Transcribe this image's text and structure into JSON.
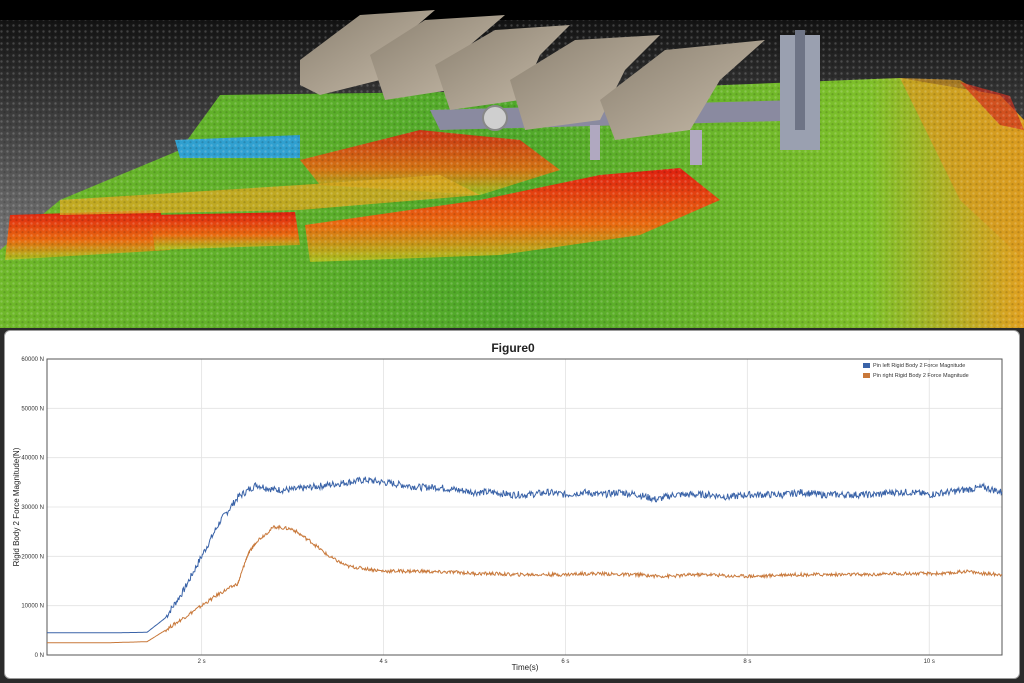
{
  "colors": {
    "series_left": "#3a63a8",
    "series_right": "#c8783a",
    "grid": "#e2e2e2",
    "plot_border": "#555555"
  },
  "scene": {
    "description_icon": "plough-simulation-3d-view-icon"
  },
  "chart_data": {
    "type": "line",
    "title": "Figure0",
    "xlabel": "Time(s)",
    "ylabel": "Rigid Body 2 Force Magnitude(N)",
    "xlim": [
      0.3,
      10.8
    ],
    "ylim": [
      0,
      60000
    ],
    "x_ticks": [
      2,
      4,
      6,
      8,
      10
    ],
    "x_tick_labels": [
      "2 s",
      "4 s",
      "6 s",
      "8 s",
      "10 s"
    ],
    "y_ticks": [
      0,
      10000,
      20000,
      30000,
      40000,
      50000,
      60000
    ],
    "y_tick_labels": [
      "0 N",
      "10000 N",
      "20000 N",
      "30000 N",
      "40000 N",
      "50000 N",
      "60000 N"
    ],
    "grid": true,
    "legend_position": "top-right",
    "series": [
      {
        "name": "Pin left Rigid Body 2 Force Magnitude",
        "color": "#3a63a8",
        "x": [
          0.3,
          1.0,
          1.4,
          1.6,
          1.8,
          2.0,
          2.2,
          2.4,
          2.6,
          2.8,
          3.0,
          3.2,
          3.4,
          3.6,
          3.8,
          4.0,
          4.2,
          4.4,
          4.6,
          4.8,
          5.0,
          5.2,
          5.4,
          5.6,
          5.8,
          6.0,
          6.2,
          6.4,
          6.6,
          6.8,
          7.0,
          7.2,
          7.4,
          7.6,
          7.8,
          8.0,
          8.2,
          8.4,
          8.6,
          8.8,
          9.0,
          9.2,
          9.4,
          9.6,
          9.8,
          10.0,
          10.2,
          10.4,
          10.6,
          10.8
        ],
        "y": [
          4500,
          4500,
          4600,
          7500,
          13000,
          20000,
          27000,
          32000,
          34500,
          33500,
          33500,
          34000,
          34500,
          35000,
          35500,
          35000,
          34500,
          34000,
          34000,
          33500,
          33000,
          33000,
          32500,
          32500,
          33000,
          32500,
          33000,
          32500,
          33000,
          32500,
          31500,
          32500,
          32500,
          32500,
          32000,
          32500,
          32500,
          32500,
          33000,
          32500,
          32500,
          32500,
          32500,
          33000,
          33000,
          32500,
          33000,
          33500,
          34000,
          33000
        ]
      },
      {
        "name": "Pin right Rigid Body 2 Force Magnitude",
        "color": "#c8783a",
        "x": [
          0.3,
          1.0,
          1.4,
          1.6,
          1.8,
          2.0,
          2.2,
          2.4,
          2.5,
          2.6,
          2.8,
          3.0,
          3.2,
          3.4,
          3.6,
          3.8,
          4.0,
          4.2,
          4.4,
          4.6,
          4.8,
          5.0,
          5.2,
          5.4,
          5.6,
          5.8,
          6.0,
          6.2,
          6.4,
          6.6,
          6.8,
          7.0,
          7.2,
          7.4,
          7.6,
          7.8,
          8.0,
          8.2,
          8.4,
          8.6,
          8.8,
          9.0,
          9.2,
          9.4,
          9.6,
          9.8,
          10.0,
          10.2,
          10.4,
          10.6,
          10.8
        ],
        "y": [
          2500,
          2500,
          2700,
          5000,
          7500,
          10000,
          12500,
          14500,
          20000,
          23000,
          26000,
          25500,
          23000,
          20000,
          18000,
          17500,
          17000,
          17000,
          17000,
          16800,
          16800,
          16500,
          16500,
          16300,
          16300,
          16300,
          16300,
          16500,
          16500,
          16300,
          16300,
          16000,
          16000,
          16300,
          16300,
          16000,
          16000,
          16000,
          16300,
          16300,
          16300,
          16300,
          16300,
          16300,
          16500,
          16500,
          16500,
          16500,
          17000,
          16500,
          16300
        ]
      }
    ]
  }
}
